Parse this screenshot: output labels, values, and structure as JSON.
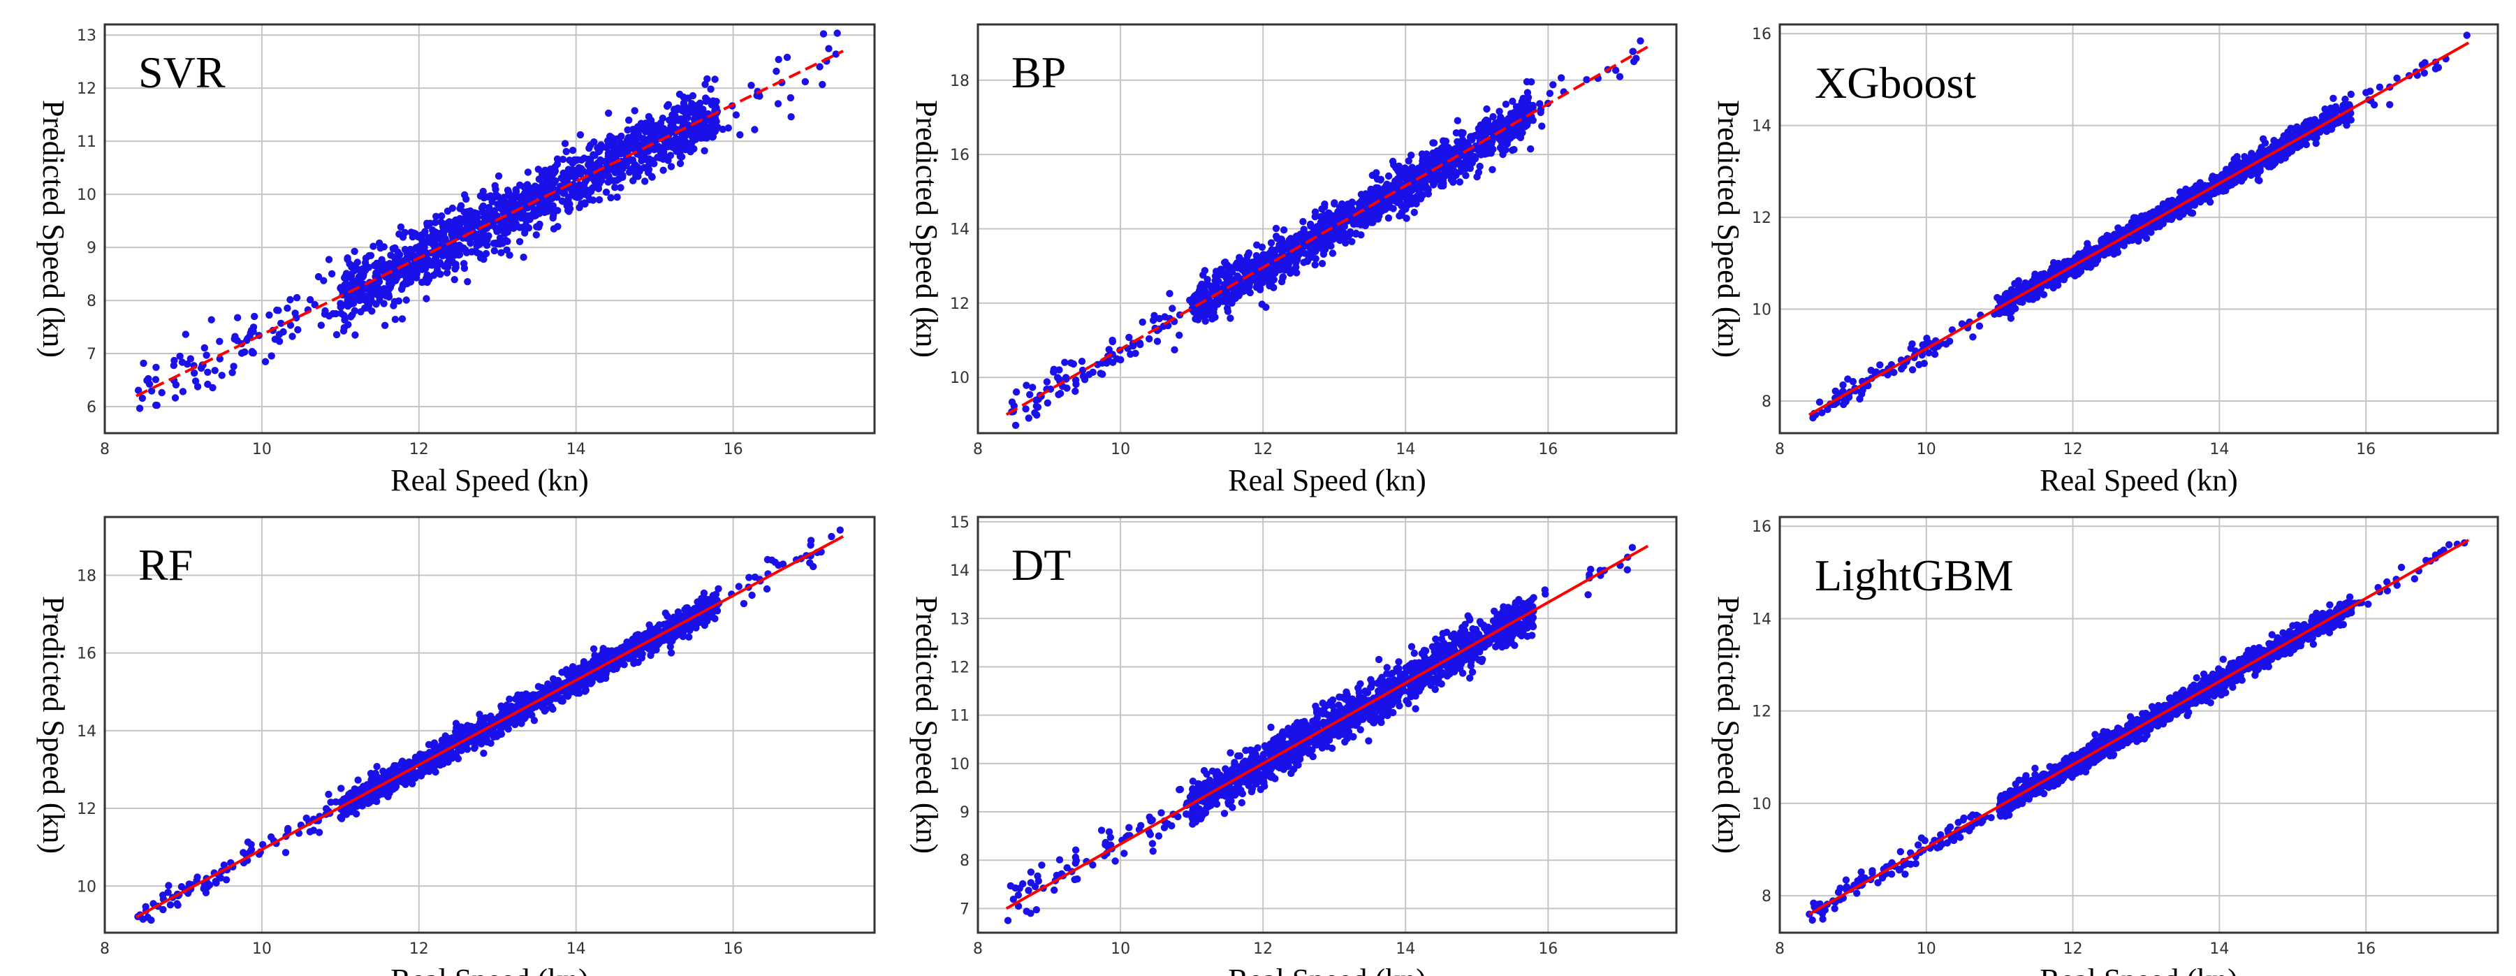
{
  "colors": {
    "points": "#1a10e8",
    "fit_line": "#ff0000",
    "grid": "#c4c4c4",
    "frame": "#333333"
  },
  "chart_data": [
    {
      "type": "scatter",
      "title": "SVR",
      "xlabel": "Real Speed (kn)",
      "ylabel": "Predicted Speed (kn)",
      "xlim": [
        8,
        17.8
      ],
      "ylim": [
        5.5,
        13.2
      ],
      "xticks": [
        8,
        10,
        12,
        14,
        16
      ],
      "yticks": [
        6,
        7,
        8,
        9,
        10,
        11,
        12,
        13
      ],
      "fit_line": {
        "x": [
          8.4,
          17.4
        ],
        "y": [
          6.2,
          12.7
        ],
        "style": "dashed"
      },
      "spread": 0.55
    },
    {
      "type": "scatter",
      "title": "BP",
      "xlabel": "Real Speed (kn)",
      "ylabel": "Predicted Speed (kn)",
      "xlim": [
        8,
        17.8
      ],
      "ylim": [
        8.5,
        19.5
      ],
      "xticks": [
        8,
        10,
        12,
        14,
        16
      ],
      "yticks": [
        10,
        12,
        14,
        16,
        18
      ],
      "fit_line": {
        "x": [
          8.4,
          17.4
        ],
        "y": [
          9.0,
          18.9
        ],
        "style": "dashed"
      },
      "spread": 0.55
    },
    {
      "type": "scatter",
      "title": "XGboost",
      "xlabel": "Real Speed (kn)",
      "ylabel": "Predicted Speed (kn)",
      "xlim": [
        8,
        17.8
      ],
      "ylim": [
        7.3,
        16.2
      ],
      "xticks": [
        8,
        10,
        12,
        14,
        16
      ],
      "yticks": [
        8,
        10,
        12,
        14,
        16
      ],
      "fit_line": {
        "x": [
          8.4,
          17.4
        ],
        "y": [
          7.7,
          15.8
        ],
        "style": "solid"
      },
      "spread": 0.22
    },
    {
      "type": "scatter",
      "title": "RF",
      "xlabel": "Real Speed (kn)",
      "ylabel": "Predicted Speed (kn)",
      "xlim": [
        8,
        17.8
      ],
      "ylim": [
        8.8,
        19.5
      ],
      "xticks": [
        8,
        10,
        12,
        14,
        16
      ],
      "yticks": [
        10,
        12,
        14,
        16,
        18
      ],
      "fit_line": {
        "x": [
          8.4,
          17.4
        ],
        "y": [
          9.2,
          19.0
        ],
        "style": "solid"
      },
      "spread": 0.32
    },
    {
      "type": "scatter",
      "title": "DT",
      "xlabel": "Real Speed (kn)",
      "ylabel": "Predicted Speed (kn)",
      "xlim": [
        8,
        17.8
      ],
      "ylim": [
        6.5,
        15.1
      ],
      "xticks": [
        8,
        10,
        12,
        14,
        16
      ],
      "yticks": [
        7,
        8,
        9,
        10,
        11,
        12,
        13,
        14,
        15
      ],
      "fit_line": {
        "x": [
          8.4,
          17.4
        ],
        "y": [
          7.0,
          14.5
        ],
        "style": "solid"
      },
      "spread": 0.4
    },
    {
      "type": "scatter",
      "title": "LightGBM",
      "xlabel": "Real Speed (kn)",
      "ylabel": "Predicted Speed (kn)",
      "xlim": [
        8,
        17.8
      ],
      "ylim": [
        7.2,
        16.2
      ],
      "xticks": [
        8,
        10,
        12,
        14,
        16
      ],
      "yticks": [
        8,
        10,
        12,
        14,
        16
      ],
      "fit_line": {
        "x": [
          8.4,
          17.4
        ],
        "y": [
          7.6,
          15.7
        ],
        "style": "solid"
      },
      "spread": 0.22
    }
  ]
}
